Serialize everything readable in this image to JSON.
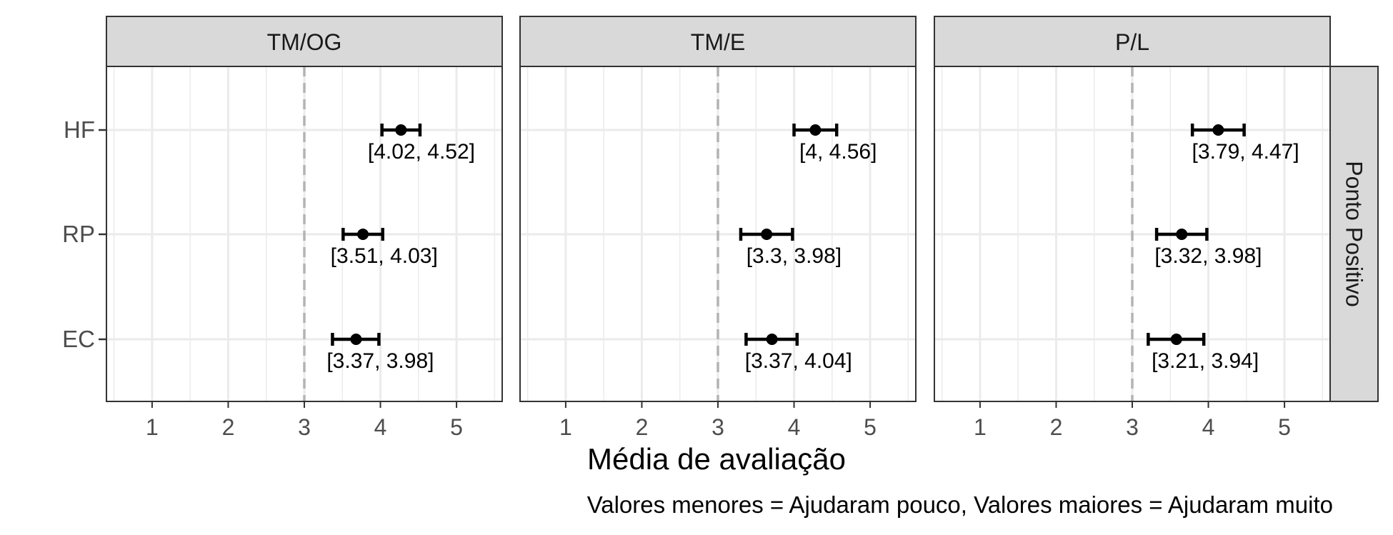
{
  "chart_data": {
    "type": "errorbar",
    "xlabel": "Média de avaliação",
    "caption": "Valores menores = Ajudaram pouco, Valores maiores = Ajudaram muito",
    "facet_row_label": "Ponto Positivo",
    "xlim": [
      0.4,
      5.6
    ],
    "xticks": [
      1,
      2,
      3,
      4,
      5
    ],
    "reference_line": 3,
    "categories": [
      "HF",
      "RP",
      "EC"
    ],
    "grid": true,
    "panels": [
      {
        "title": "TM/OG",
        "points": [
          {
            "category": "HF",
            "mean": 4.27,
            "lower": 4.02,
            "upper": 4.52,
            "label": "[4.02, 4.52]"
          },
          {
            "category": "RP",
            "mean": 3.77,
            "lower": 3.51,
            "upper": 4.03,
            "label": "[3.51, 4.03]"
          },
          {
            "category": "EC",
            "mean": 3.68,
            "lower": 3.37,
            "upper": 3.98,
            "label": "[3.37, 3.98]"
          }
        ]
      },
      {
        "title": "TM/E",
        "points": [
          {
            "category": "HF",
            "mean": 4.28,
            "lower": 4,
            "upper": 4.56,
            "label": "[4, 4.56]"
          },
          {
            "category": "RP",
            "mean": 3.64,
            "lower": 3.3,
            "upper": 3.98,
            "label": "[3.3, 3.98]"
          },
          {
            "category": "EC",
            "mean": 3.71,
            "lower": 3.37,
            "upper": 4.04,
            "label": "[3.37, 4.04]"
          }
        ]
      },
      {
        "title": "P/L",
        "points": [
          {
            "category": "HF",
            "mean": 4.13,
            "lower": 3.79,
            "upper": 4.47,
            "label": "[3.79, 4.47]"
          },
          {
            "category": "RP",
            "mean": 3.65,
            "lower": 3.32,
            "upper": 3.98,
            "label": "[3.32, 3.98]"
          },
          {
            "category": "EC",
            "mean": 3.58,
            "lower": 3.21,
            "upper": 3.94,
            "label": "[3.21, 3.94]"
          }
        ]
      }
    ],
    "colors": {
      "strip_fill": "#d9d9d9",
      "panel_border": "#333333",
      "grid": "#ebebeb",
      "reference_line": "#b3b3b3",
      "points": "#000000",
      "tick_text": "#4d4d4d"
    }
  }
}
